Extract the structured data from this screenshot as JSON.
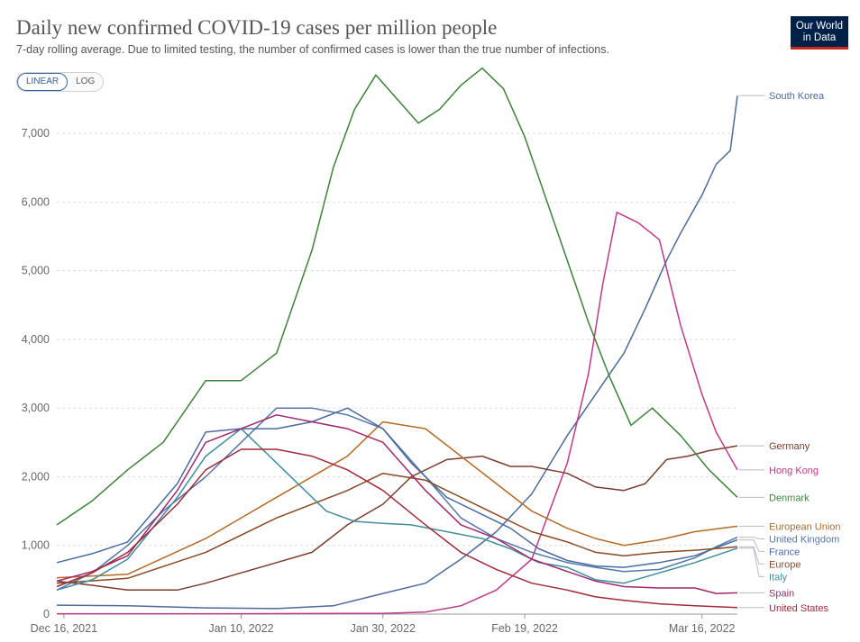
{
  "header": {
    "title": "Daily new confirmed COVID-19 cases per million people",
    "subtitle": "7-day rolling average. Due to limited testing, the number of confirmed cases is lower than the true number of infections.",
    "logo_line1": "Our World",
    "logo_line2": "in Data"
  },
  "controls": {
    "linear_label": "LINEAR",
    "log_label": "LOG",
    "active": "LINEAR"
  },
  "chart_data": {
    "type": "line",
    "title": "Daily new confirmed COVID-19 cases per million people",
    "ylim": [
      0,
      7500
    ],
    "y_ticks": [
      0,
      1000,
      2000,
      3000,
      4000,
      5000,
      6000,
      7000
    ],
    "y_tick_labels": [
      "0",
      "1,000",
      "2,000",
      "3,000",
      "4,000",
      "5,000",
      "6,000",
      "7,000"
    ],
    "x_range": [
      "2021-12-15",
      "2022-03-21"
    ],
    "x_ticks": [
      "2021-12-16",
      "2022-01-10",
      "2022-01-30",
      "2022-02-19",
      "2022-03-16"
    ],
    "x_tick_labels": [
      "Dec 16, 2021",
      "Jan 10, 2022",
      "Jan 30, 2022",
      "Feb 19, 2022",
      "Mar 16, 2022"
    ],
    "grid": "horizontal",
    "legend": "right",
    "series": [
      {
        "name": "South Korea",
        "color": "#4c6a9c",
        "label_value": 7550,
        "x": [
          "2021-12-15",
          "2021-12-25",
          "2022-01-05",
          "2022-01-15",
          "2022-01-23",
          "2022-01-30",
          "2022-02-05",
          "2022-02-10",
          "2022-02-15",
          "2022-02-20",
          "2022-02-25",
          "2022-03-01",
          "2022-03-05",
          "2022-03-08",
          "2022-03-11",
          "2022-03-13",
          "2022-03-16",
          "2022-03-18",
          "2022-03-20",
          "2022-03-21"
        ],
        "values": [
          130,
          120,
          90,
          80,
          120,
          300,
          450,
          800,
          1200,
          1750,
          2600,
          3200,
          3800,
          4450,
          5150,
          5550,
          6100,
          6550,
          6750,
          7550
        ]
      },
      {
        "name": "Germany",
        "color": "#7b3b2d",
        "label_value": 2450,
        "x": [
          "2021-12-15",
          "2021-12-20",
          "2021-12-25",
          "2022-01-01",
          "2022-01-05",
          "2022-01-10",
          "2022-01-15",
          "2022-01-20",
          "2022-01-25",
          "2022-01-30",
          "2022-02-03",
          "2022-02-08",
          "2022-02-13",
          "2022-02-17",
          "2022-02-20",
          "2022-02-25",
          "2022-03-01",
          "2022-03-05",
          "2022-03-08",
          "2022-03-11",
          "2022-03-14",
          "2022-03-17",
          "2022-03-21"
        ],
        "values": [
          480,
          420,
          350,
          350,
          450,
          600,
          750,
          900,
          1300,
          1600,
          2000,
          2250,
          2300,
          2150,
          2150,
          2050,
          1850,
          1800,
          1900,
          2250,
          2300,
          2380,
          2450
        ]
      },
      {
        "name": "Hong Kong",
        "color": "#c0398a",
        "label_value": 2100,
        "x": [
          "2021-12-15",
          "2022-01-10",
          "2022-01-30",
          "2022-02-05",
          "2022-02-10",
          "2022-02-15",
          "2022-02-20",
          "2022-02-25",
          "2022-02-28",
          "2022-03-02",
          "2022-03-04",
          "2022-03-07",
          "2022-03-10",
          "2022-03-13",
          "2022-03-16",
          "2022-03-18",
          "2022-03-21"
        ],
        "values": [
          5,
          5,
          10,
          30,
          120,
          350,
          800,
          2200,
          3500,
          4800,
          5850,
          5700,
          5450,
          4200,
          3200,
          2650,
          2100
        ]
      },
      {
        "name": "Denmark",
        "color": "#3d8238",
        "label_value": 1700,
        "x": [
          "2021-12-15",
          "2021-12-20",
          "2021-12-25",
          "2021-12-30",
          "2022-01-05",
          "2022-01-10",
          "2022-01-15",
          "2022-01-20",
          "2022-01-23",
          "2022-01-26",
          "2022-01-29",
          "2022-02-01",
          "2022-02-04",
          "2022-02-07",
          "2022-02-10",
          "2022-02-13",
          "2022-02-16",
          "2022-02-19",
          "2022-02-22",
          "2022-02-25",
          "2022-02-28",
          "2022-03-03",
          "2022-03-06",
          "2022-03-09",
          "2022-03-13",
          "2022-03-17",
          "2022-03-21"
        ],
        "values": [
          1300,
          1650,
          2100,
          2500,
          3400,
          3400,
          3800,
          5300,
          6500,
          7350,
          7850,
          7500,
          7150,
          7350,
          7700,
          7950,
          7650,
          6950,
          6050,
          5150,
          4250,
          3450,
          2750,
          3000,
          2600,
          2100,
          1700
        ]
      },
      {
        "name": "European Union",
        "color": "#b46a27",
        "label_value": 1280,
        "x": [
          "2021-12-15",
          "2021-12-25",
          "2022-01-05",
          "2022-01-15",
          "2022-01-25",
          "2022-01-30",
          "2022-02-05",
          "2022-02-10",
          "2022-02-15",
          "2022-02-20",
          "2022-02-25",
          "2022-03-01",
          "2022-03-05",
          "2022-03-10",
          "2022-03-15",
          "2022-03-21"
        ],
        "values": [
          530,
          580,
          1100,
          1700,
          2300,
          2800,
          2700,
          2300,
          1900,
          1500,
          1250,
          1100,
          1000,
          1080,
          1200,
          1280
        ]
      },
      {
        "name": "United Kingdom",
        "color": "#5577aa",
        "label_value": 1120,
        "x": [
          "2021-12-15",
          "2021-12-20",
          "2021-12-25",
          "2021-12-30",
          "2022-01-05",
          "2022-01-10",
          "2022-01-15",
          "2022-01-20",
          "2022-01-25",
          "2022-01-30",
          "2022-02-05",
          "2022-02-10",
          "2022-02-15",
          "2022-02-20",
          "2022-02-25",
          "2022-03-01",
          "2022-03-05",
          "2022-03-10",
          "2022-03-15",
          "2022-03-18",
          "2022-03-21"
        ],
        "values": [
          350,
          600,
          1000,
          1500,
          2000,
          2500,
          3000,
          3000,
          2900,
          2700,
          2000,
          1400,
          1100,
          900,
          750,
          680,
          620,
          650,
          820,
          980,
          1120
        ]
      },
      {
        "name": "France",
        "color": "#4a6ba0",
        "label_value": 1080,
        "x": [
          "2021-12-15",
          "2021-12-20",
          "2021-12-25",
          "2022-01-01",
          "2022-01-05",
          "2022-01-10",
          "2022-01-15",
          "2022-01-20",
          "2022-01-25",
          "2022-01-30",
          "2022-02-03",
          "2022-02-08",
          "2022-02-13",
          "2022-02-17",
          "2022-02-21",
          "2022-02-25",
          "2022-03-01",
          "2022-03-05",
          "2022-03-10",
          "2022-03-15",
          "2022-03-21"
        ],
        "values": [
          750,
          880,
          1050,
          1900,
          2650,
          2700,
          2700,
          2800,
          3000,
          2700,
          2200,
          1700,
          1450,
          1250,
          950,
          780,
          700,
          680,
          750,
          850,
          1080
        ]
      },
      {
        "name": "Europe",
        "color": "#8a4a23",
        "label_value": 980,
        "x": [
          "2021-12-15",
          "2021-12-25",
          "2022-01-05",
          "2022-01-15",
          "2022-01-25",
          "2022-01-30",
          "2022-02-05",
          "2022-02-10",
          "2022-02-15",
          "2022-02-20",
          "2022-02-25",
          "2022-03-01",
          "2022-03-05",
          "2022-03-10",
          "2022-03-15",
          "2022-03-21"
        ],
        "values": [
          450,
          520,
          900,
          1400,
          1800,
          2050,
          1950,
          1700,
          1450,
          1200,
          1050,
          900,
          850,
          900,
          930,
          980
        ]
      },
      {
        "name": "Italy",
        "color": "#3f8e9a",
        "label_value": 960,
        "x": [
          "2021-12-15",
          "2021-12-20",
          "2021-12-25",
          "2022-01-01",
          "2022-01-05",
          "2022-01-10",
          "2022-01-15",
          "2022-01-18",
          "2022-01-22",
          "2022-01-26",
          "2022-01-30",
          "2022-02-03",
          "2022-02-08",
          "2022-02-13",
          "2022-02-17",
          "2022-02-21",
          "2022-02-25",
          "2022-03-01",
          "2022-03-05",
          "2022-03-10",
          "2022-03-15",
          "2022-03-21"
        ],
        "values": [
          350,
          500,
          800,
          1700,
          2300,
          2700,
          2200,
          1900,
          1500,
          1350,
          1320,
          1300,
          1200,
          1100,
          950,
          750,
          680,
          500,
          450,
          600,
          750,
          960
        ]
      },
      {
        "name": "Spain",
        "color": "#a0276c",
        "label_value": 310,
        "x": [
          "2021-12-15",
          "2021-12-20",
          "2021-12-25",
          "2022-01-01",
          "2022-01-05",
          "2022-01-10",
          "2022-01-15",
          "2022-01-20",
          "2022-01-25",
          "2022-01-30",
          "2022-02-05",
          "2022-02-10",
          "2022-02-15",
          "2022-02-20",
          "2022-02-25",
          "2022-03-01",
          "2022-03-05",
          "2022-03-10",
          "2022-03-15",
          "2022-03-18",
          "2022-03-21"
        ],
        "values": [
          480,
          620,
          850,
          1800,
          2500,
          2700,
          2900,
          2800,
          2700,
          2500,
          1800,
          1300,
          1100,
          800,
          620,
          480,
          400,
          380,
          380,
          300,
          310
        ]
      },
      {
        "name": "United States",
        "color": "#a02b3a",
        "label_value": 95,
        "x": [
          "2021-12-15",
          "2021-12-20",
          "2021-12-25",
          "2022-01-01",
          "2022-01-05",
          "2022-01-10",
          "2022-01-15",
          "2022-01-20",
          "2022-01-25",
          "2022-01-30",
          "2022-02-05",
          "2022-02-10",
          "2022-02-15",
          "2022-02-20",
          "2022-02-25",
          "2022-03-01",
          "2022-03-05",
          "2022-03-10",
          "2022-03-15",
          "2022-03-21"
        ],
        "values": [
          400,
          600,
          900,
          1600,
          2100,
          2400,
          2400,
          2300,
          2100,
          1800,
          1300,
          900,
          650,
          450,
          350,
          250,
          200,
          150,
          120,
          95
        ]
      }
    ]
  }
}
